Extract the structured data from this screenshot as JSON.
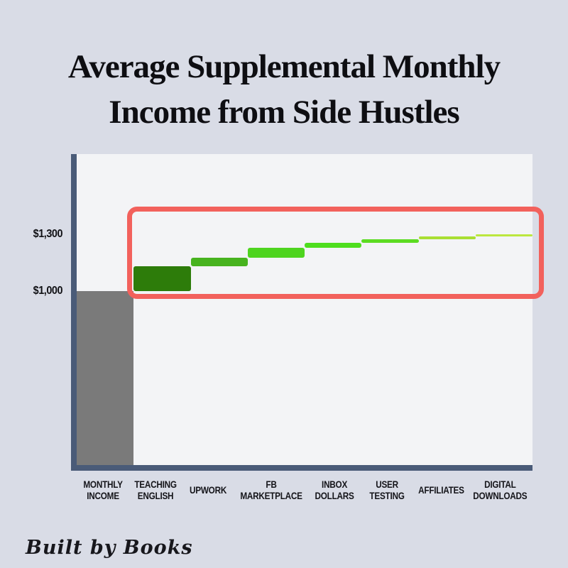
{
  "page": {
    "background_color": "#d9dce6",
    "plot_background_color": "#f3f4f6",
    "axis_color": "#4a5b78",
    "text_color": "#0e0e12"
  },
  "title": {
    "line1": "Average Supplemental Monthly",
    "line2": "Income from Side Hustles"
  },
  "footer": {
    "brand": "Built by Books"
  },
  "chart_data": {
    "type": "bar",
    "subtype": "waterfall",
    "title": "Average Supplemental Monthly Income from Side Hustles",
    "ylabel": "",
    "xlabel": "",
    "grid": false,
    "legend": false,
    "y_axis_range_shown": [
      1000,
      1300
    ],
    "categories": [
      "Monthly Income",
      "Teaching English",
      "Upwork",
      "FB Marketplace",
      "Inbox Dollars",
      "User Testing",
      "Affiliates",
      "Digital Downloads"
    ],
    "bars": [
      {
        "category": "Monthly Income",
        "tick_lines": [
          "MONTHLY",
          "INCOME"
        ],
        "start": 0,
        "end": 1000,
        "increment": 1000,
        "color": "#7a7a7a",
        "from_baseline": true
      },
      {
        "category": "Teaching English",
        "tick_lines": [
          "TEACHING",
          "ENGLISH"
        ],
        "start": 1000,
        "end": 1130,
        "increment": 130,
        "color": "#2d7c0a",
        "from_baseline": false
      },
      {
        "category": "Upwork",
        "tick_lines": [
          "UPWORK"
        ],
        "start": 1130,
        "end": 1175,
        "increment": 45,
        "color": "#47b31f",
        "from_baseline": false
      },
      {
        "category": "FB Marketplace",
        "tick_lines": [
          "FB",
          "MARKETPLACE"
        ],
        "start": 1175,
        "end": 1230,
        "increment": 55,
        "color": "#4ed41f",
        "from_baseline": false
      },
      {
        "category": "Inbox Dollars",
        "tick_lines": [
          "INBOX",
          "DOLLARS"
        ],
        "start": 1230,
        "end": 1255,
        "increment": 25,
        "color": "#4ede1e",
        "from_baseline": false
      },
      {
        "category": "User Testing",
        "tick_lines": [
          "USER",
          "TESTING"
        ],
        "start": 1255,
        "end": 1275,
        "increment": 20,
        "color": "#5cdc22",
        "from_baseline": false
      },
      {
        "category": "Affiliates",
        "tick_lines": [
          "AFFILIATES"
        ],
        "start": 1275,
        "end": 1290,
        "increment": 15,
        "color": "#a9df33",
        "from_baseline": false
      },
      {
        "category": "Digital Downloads",
        "tick_lines": [
          "DIGITAL",
          "DOWNLOADS"
        ],
        "start": 1290,
        "end": 1300,
        "increment": 10,
        "color": "#bce73f",
        "from_baseline": false
      }
    ],
    "y_ticks": [
      {
        "label": "$1,300",
        "value": 1300
      },
      {
        "label": "$1,000",
        "value": 1000
      }
    ],
    "annotations": [
      {
        "name": "highlight-box",
        "shape": "rounded-rect",
        "color": "#f2615c",
        "covers": "all side-hustle bars from Teaching English through Digital Downloads"
      }
    ]
  }
}
